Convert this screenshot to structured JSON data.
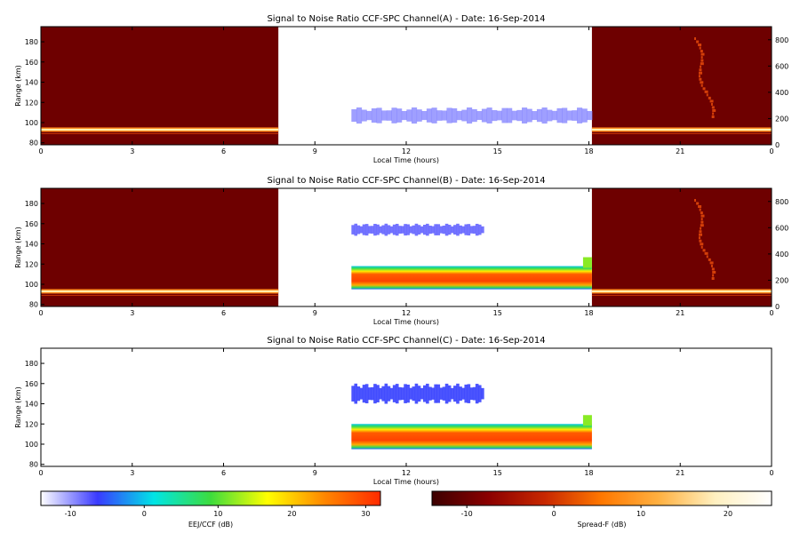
{
  "colors": {
    "background": "#ffffff",
    "spread_f_fill": "#6e0000",
    "spread_f_band": "#ff8a1e",
    "spread_f_band_core": "#fff0b0",
    "spread_f_streak": "#e64a0a"
  },
  "colorbars": {
    "eej": {
      "label": "EEJ/CCF (dB)",
      "ticks": [
        "-10",
        "0",
        "10",
        "20",
        "30"
      ],
      "tick_values": [
        -10,
        0,
        10,
        20,
        30
      ],
      "range": [
        -14,
        32
      ],
      "colors": [
        "#ffffff",
        "#3a3aff",
        "#00e5e5",
        "#3ddc3d",
        "#ffff00",
        "#ff8800",
        "#ff2a00"
      ]
    },
    "spread_f": {
      "label": "Spread-F (dB)",
      "ticks": [
        "-10",
        "0",
        "10",
        "20"
      ],
      "tick_values": [
        -10,
        0,
        10,
        20
      ],
      "range": [
        -14,
        25
      ],
      "colors": [
        "#3c0000",
        "#8b0000",
        "#c82800",
        "#ff7800",
        "#ffb040",
        "#fff0c0",
        "#ffffff"
      ]
    }
  },
  "chart_data": [
    {
      "type": "heatmap",
      "title": "Signal to Noise Ratio CCF-SPC Channel(A) - Date: 16-Sep-2014",
      "xlabel": "Local Time (hours)",
      "ylabel": "Range (km)",
      "xlim": [
        0,
        24
      ],
      "ylim": [
        78,
        195
      ],
      "x_ticks": [
        "0",
        "3",
        "6",
        "9",
        "12",
        "15",
        "18",
        "21",
        "0"
      ],
      "y_ticks": [
        "80",
        "100",
        "120",
        "140",
        "160",
        "180"
      ],
      "y2_ticks": [
        "0",
        "200",
        "400",
        "600",
        "800"
      ],
      "y2lim": [
        0,
        900
      ],
      "spread_f_panels": [
        [
          0,
          7.8
        ],
        [
          18.1,
          24
        ]
      ],
      "eej_region": {
        "hours": [
          10.2,
          18.1
        ],
        "ranges": [
          {
            "range_km": [
              99,
              115
            ],
            "snr_db": -9
          }
        ]
      },
      "spread_f_band_km": 93
    },
    {
      "type": "heatmap",
      "title": "Signal to Noise Ratio CCF-SPC Channel(B) - Date: 16-Sep-2014",
      "xlabel": "Local Time (hours)",
      "ylabel": "Range (km)",
      "xlim": [
        0,
        24
      ],
      "ylim": [
        78,
        195
      ],
      "x_ticks": [
        "0",
        "3",
        "6",
        "9",
        "12",
        "15",
        "18",
        "21",
        "0"
      ],
      "y_ticks": [
        "80",
        "100",
        "120",
        "140",
        "160",
        "180"
      ],
      "y2_ticks": [
        "0",
        "200",
        "400",
        "600",
        "800"
      ],
      "y2lim": [
        0,
        900
      ],
      "spread_f_panels": [
        [
          0,
          7.8
        ],
        [
          18.1,
          24
        ]
      ],
      "eej_region": {
        "hours": [
          10.2,
          18.1
        ],
        "ranges": [
          {
            "range_km": [
              95,
              118
            ],
            "snr_db": 25
          },
          {
            "range_km": [
              148,
              160
            ],
            "snr_db": -8
          }
        ]
      },
      "spread_f_band_km": 93
    },
    {
      "type": "heatmap",
      "title": "Signal to Noise Ratio CCF-SPC Channel(C) - Date: 16-Sep-2014",
      "xlabel": "Local Time (hours)",
      "ylabel": "Range (km)",
      "xlim": [
        0,
        24
      ],
      "ylim": [
        78,
        195
      ],
      "x_ticks": [
        "0",
        "3",
        "6",
        "9",
        "12",
        "15",
        "18",
        "21",
        "0"
      ],
      "y_ticks": [
        "80",
        "100",
        "120",
        "140",
        "160",
        "180"
      ],
      "spread_f_panels": [],
      "eej_region": {
        "hours": [
          10.2,
          18.1
        ],
        "ranges": [
          {
            "range_km": [
              95,
              120
            ],
            "snr_db": 27
          },
          {
            "range_km": [
              140,
              160
            ],
            "snr_db": -6
          }
        ]
      }
    }
  ]
}
